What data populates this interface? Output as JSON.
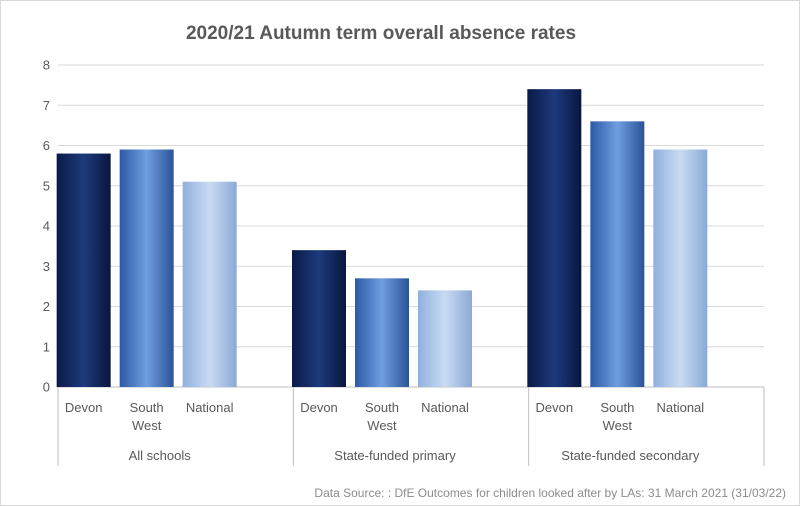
{
  "chart_data": {
    "type": "bar",
    "title": "2020/21 Autumn term overall absence rates",
    "xlabel": "",
    "ylabel": "",
    "ylim": [
      0,
      8
    ],
    "yticks": [
      0,
      1,
      2,
      3,
      4,
      5,
      6,
      7,
      8
    ],
    "grid": true,
    "legend": "none",
    "groups": [
      {
        "label": "All schools",
        "bars": [
          {
            "category": "Devon",
            "value": 5.8,
            "color": "devon"
          },
          {
            "category": "South West",
            "value": 5.9,
            "color": "southwest"
          },
          {
            "category": "National",
            "value": 5.1,
            "color": "national"
          }
        ]
      },
      {
        "label": "State-funded primary",
        "bars": [
          {
            "category": "Devon",
            "value": 3.4,
            "color": "devon"
          },
          {
            "category": "South West",
            "value": 2.7,
            "color": "southwest"
          },
          {
            "category": "National",
            "value": 2.4,
            "color": "national"
          }
        ]
      },
      {
        "label": "State-funded secondary",
        "bars": [
          {
            "category": "Devon",
            "value": 7.4,
            "color": "devon"
          },
          {
            "category": "South West",
            "value": 6.6,
            "color": "southwest"
          },
          {
            "category": "National",
            "value": 5.9,
            "color": "national"
          }
        ]
      }
    ],
    "colors": {
      "devon": "#0b2360",
      "southwest": "#3f74c2",
      "national": "#a8c3e6"
    }
  },
  "source": "Data Source: : DfE Outcomes for children looked after by LAs: 31 March 2021 (31/03/22)"
}
